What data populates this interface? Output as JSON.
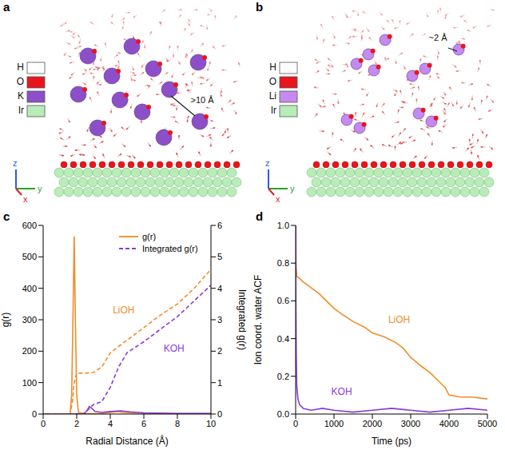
{
  "panels": [
    {
      "panel": "a",
      "elements": [
        {
          "symbol": "H",
          "color": "#ffffff"
        },
        {
          "symbol": "O",
          "color": "#e8161b"
        },
        {
          "symbol": "K",
          "color": "#8c4fc8"
        },
        {
          "symbol": "Ir",
          "color": "#b8ecb8"
        }
      ],
      "annotation": ">10 Å",
      "axes": [
        {
          "label": "z",
          "color": "#2d5be3"
        },
        {
          "label": "y",
          "color": "#2ca02c"
        },
        {
          "label": "x",
          "color": "#e0202a"
        }
      ]
    },
    {
      "panel": "b",
      "elements": [
        {
          "symbol": "H",
          "color": "#ffffff"
        },
        {
          "symbol": "O",
          "color": "#e8161b"
        },
        {
          "symbol": "Li",
          "color": "#c58af0"
        },
        {
          "symbol": "Ir",
          "color": "#b8ecb8"
        }
      ],
      "annotation": "~2 Å",
      "axes": [
        {
          "label": "z",
          "color": "#2d5be3"
        },
        {
          "label": "y",
          "color": "#2ca02c"
        },
        {
          "label": "x",
          "color": "#e0202a"
        }
      ]
    }
  ],
  "chart_data": [
    {
      "panel": "c",
      "type": "line",
      "x_label": "Radial Distance (Å)",
      "y_label": "g(r)",
      "y2_label": "Integrated g(r)",
      "xlim": [
        0,
        10
      ],
      "xticks": [
        0,
        2,
        4,
        6,
        8,
        10
      ],
      "ylim": [
        0,
        600
      ],
      "yticks": [
        0,
        100,
        200,
        300,
        400,
        500,
        600
      ],
      "y2lim": [
        0,
        6
      ],
      "y2ticks": [
        0,
        1,
        2,
        3,
        4,
        5,
        6
      ],
      "legend": "top-right",
      "series": [
        {
          "name": "g(r)",
          "color": "#f28c28",
          "line_style": "solid",
          "x": [
            0,
            1.0,
            1.6,
            1.7,
            1.78,
            1.85,
            1.92,
            2.0,
            2.1,
            2.5,
            3.5,
            4.0,
            4.4,
            4.8,
            5.5,
            6.5,
            8,
            10
          ],
          "values": [
            0,
            0,
            0,
            60,
            320,
            565,
            300,
            60,
            5,
            1,
            2,
            5,
            8,
            5,
            3,
            2,
            1,
            1
          ]
        },
        {
          "name": "g(r)",
          "color": "#8a3ad6",
          "line_style": "solid",
          "x": [
            0,
            2.4,
            2.6,
            2.75,
            2.9,
            3.1,
            3.5,
            4.0,
            4.6,
            5.2,
            6,
            8,
            10
          ],
          "values": [
            0,
            0,
            10,
            24,
            18,
            8,
            5,
            8,
            10,
            7,
            4,
            2,
            2
          ]
        },
        {
          "name": "Integrated g(r)",
          "color": "#8a3ad6",
          "line_style": "dashed",
          "axis": "y2",
          "x": [
            0,
            2.4,
            2.7,
            3.0,
            3.5,
            4.0,
            4.5,
            5.0,
            6,
            7,
            8,
            9,
            10
          ],
          "values": [
            0,
            0,
            0.15,
            0.3,
            0.4,
            0.85,
            1.5,
            1.95,
            2.3,
            2.7,
            3.1,
            3.6,
            4.1
          ]
        },
        {
          "name": "Integrated g(r)",
          "color": "#f28c28",
          "line_style": "dashed",
          "axis": "y2",
          "x": [
            0,
            1.6,
            1.75,
            1.85,
            2.0,
            2.5,
            3.0,
            3.5,
            4.0,
            5,
            6,
            7,
            8,
            9,
            10
          ],
          "values": [
            0,
            0,
            0.4,
            1.0,
            1.3,
            1.3,
            1.32,
            1.5,
            1.95,
            2.35,
            2.75,
            3.15,
            3.5,
            4.0,
            4.6
          ]
        }
      ],
      "annotations": [
        {
          "text": "LiOH",
          "x": 4.8,
          "y": 3.3,
          "axis": "y2",
          "color": "#f28c28"
        },
        {
          "text": "KOH",
          "x": 7.8,
          "y": 2.1,
          "axis": "y2",
          "color": "#8a3ad6"
        }
      ]
    },
    {
      "panel": "d",
      "type": "line",
      "x_label": "Time (ps)",
      "y_label": "Ion coord. water ACF",
      "xlim": [
        0,
        5000
      ],
      "xticks": [
        0,
        1000,
        2000,
        3000,
        4000,
        5000
      ],
      "ylim": [
        0,
        1
      ],
      "yticks": [
        {
          "value": 0,
          "label": "0.0"
        },
        {
          "value": 0.2,
          "label": "0.2"
        },
        {
          "value": 0.4,
          "label": "0.4"
        },
        {
          "value": 0.6,
          "label": "0.6"
        },
        {
          "value": 0.8,
          "label": "0.8"
        },
        {
          "value": 1,
          "label": "1.0"
        }
      ],
      "series": [
        {
          "name": "LiOH",
          "color": "#f28c28",
          "line_style": "solid",
          "x": [
            0,
            10,
            30,
            100,
            200,
            400,
            600,
            800,
            1000,
            1200,
            1500,
            1800,
            2000,
            2300,
            2600,
            2800,
            3000,
            3300,
            3500,
            3700,
            3900,
            4000,
            4300,
            4600,
            5000
          ],
          "values": [
            1.0,
            0.78,
            0.73,
            0.72,
            0.7,
            0.67,
            0.64,
            0.6,
            0.56,
            0.53,
            0.49,
            0.46,
            0.43,
            0.41,
            0.38,
            0.35,
            0.3,
            0.25,
            0.22,
            0.18,
            0.14,
            0.1,
            0.09,
            0.09,
            0.08
          ]
        },
        {
          "name": "KOH",
          "color": "#8a3ad6",
          "line_style": "solid",
          "x": [
            0,
            5,
            15,
            30,
            60,
            100,
            200,
            400,
            700,
            1000,
            1500,
            2000,
            2500,
            3000,
            3500,
            4000,
            4500,
            5000
          ],
          "values": [
            1.0,
            0.6,
            0.3,
            0.15,
            0.08,
            0.05,
            0.03,
            0.02,
            0.03,
            0.02,
            0.01,
            0.02,
            0.03,
            0.02,
            0.01,
            0.02,
            0.03,
            0.02
          ]
        }
      ],
      "annotations": [
        {
          "text": "LiOH",
          "x": 2700,
          "y": 0.5,
          "color": "#f28c28"
        },
        {
          "text": "KOH",
          "x": 1200,
          "y": 0.12,
          "color": "#8a3ad6"
        }
      ]
    }
  ]
}
